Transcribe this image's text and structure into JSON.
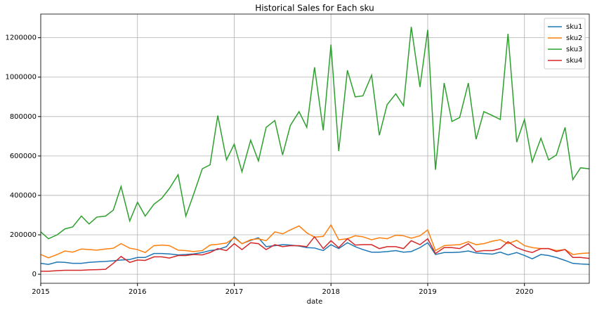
{
  "chart_data": {
    "type": "line",
    "title": "Historical Sales for Each sku",
    "xlabel": "date",
    "x": [
      2015,
      2015.08,
      2015.17,
      2015.25,
      2015.33,
      2015.42,
      2015.5,
      2015.58,
      2015.67,
      2015.75,
      2015.83,
      2015.92,
      2016,
      2016.08,
      2016.17,
      2016.25,
      2016.33,
      2016.42,
      2016.5,
      2016.58,
      2016.67,
      2016.75,
      2016.83,
      2016.92,
      2017,
      2017.08,
      2017.17,
      2017.25,
      2017.33,
      2017.42,
      2017.5,
      2017.58,
      2017.67,
      2017.75,
      2017.83,
      2017.92,
      2018,
      2018.08,
      2018.17,
      2018.25,
      2018.33,
      2018.42,
      2018.5,
      2018.58,
      2018.67,
      2018.75,
      2018.83,
      2018.92,
      2019,
      2019.08,
      2019.17,
      2019.25,
      2019.33,
      2019.42,
      2019.5,
      2019.58,
      2019.67,
      2019.75,
      2019.83,
      2019.92,
      2020,
      2020.08,
      2020.17,
      2020.25,
      2020.33,
      2020.42,
      2020.5,
      2020.58,
      2020.67
    ],
    "series": [
      {
        "name": "sku1",
        "color": "#1f77b4",
        "values": [
          55000,
          50000,
          62000,
          60000,
          55000,
          55000,
          60000,
          63000,
          65000,
          68000,
          72000,
          75000,
          85000,
          85000,
          105000,
          105000,
          103000,
          98000,
          100000,
          103000,
          110000,
          120000,
          125000,
          140000,
          190000,
          155000,
          172000,
          185000,
          140000,
          145000,
          150000,
          148000,
          143000,
          135000,
          133000,
          120000,
          150000,
          130000,
          160000,
          140000,
          125000,
          112000,
          112000,
          115000,
          120000,
          112000,
          115000,
          135000,
          160000,
          100000,
          110000,
          110000,
          112000,
          118000,
          108000,
          105000,
          102000,
          112000,
          98000,
          110000,
          95000,
          78000,
          100000,
          95000,
          85000,
          70000,
          55000,
          52000,
          50000
        ]
      },
      {
        "name": "sku2",
        "color": "#ff7f0e",
        "values": [
          100000,
          83000,
          100000,
          118000,
          112000,
          128000,
          125000,
          122000,
          128000,
          132000,
          155000,
          132000,
          125000,
          110000,
          145000,
          148000,
          145000,
          122000,
          120000,
          115000,
          120000,
          148000,
          152000,
          158000,
          185000,
          155000,
          175000,
          180000,
          170000,
          215000,
          205000,
          225000,
          245000,
          210000,
          188000,
          192000,
          250000,
          175000,
          180000,
          195000,
          190000,
          175000,
          185000,
          180000,
          198000,
          195000,
          183000,
          195000,
          225000,
          120000,
          145000,
          148000,
          150000,
          165000,
          150000,
          155000,
          168000,
          175000,
          155000,
          172000,
          145000,
          135000,
          130000,
          130000,
          120000,
          125000,
          100000,
          105000,
          108000
        ]
      },
      {
        "name": "sku3",
        "color": "#2ca02c",
        "values": [
          215000,
          180000,
          200000,
          230000,
          240000,
          295000,
          255000,
          290000,
          295000,
          325000,
          445000,
          270000,
          365000,
          295000,
          355000,
          385000,
          435000,
          505000,
          295000,
          405000,
          535000,
          555000,
          805000,
          580000,
          660000,
          520000,
          680000,
          575000,
          745000,
          780000,
          605000,
          755000,
          825000,
          745000,
          1050000,
          730000,
          1165000,
          625000,
          1035000,
          900000,
          905000,
          1010000,
          705000,
          860000,
          915000,
          855000,
          1255000,
          950000,
          1240000,
          530000,
          970000,
          775000,
          795000,
          970000,
          685000,
          825000,
          805000,
          785000,
          1220000,
          670000,
          785000,
          570000,
          690000,
          580000,
          605000,
          745000,
          480000,
          540000,
          535000
        ]
      },
      {
        "name": "sku4",
        "color": "#d62728",
        "values": [
          15000,
          15000,
          18000,
          20000,
          20000,
          20000,
          22000,
          23000,
          25000,
          55000,
          90000,
          60000,
          72000,
          70000,
          88000,
          88000,
          82000,
          95000,
          95000,
          100000,
          98000,
          110000,
          130000,
          120000,
          155000,
          125000,
          160000,
          155000,
          125000,
          150000,
          140000,
          145000,
          145000,
          140000,
          190000,
          130000,
          170000,
          135000,
          180000,
          148000,
          150000,
          150000,
          130000,
          140000,
          140000,
          130000,
          170000,
          150000,
          180000,
          105000,
          135000,
          135000,
          130000,
          155000,
          115000,
          120000,
          120000,
          130000,
          165000,
          135000,
          120000,
          110000,
          130000,
          130000,
          115000,
          125000,
          85000,
          85000,
          80000
        ]
      }
    ],
    "xlim": [
      2015,
      2020.67
    ],
    "xticks": [
      2015,
      2016,
      2017,
      2018,
      2019,
      2020
    ],
    "ylim": [
      -46000,
      1320000
    ],
    "yticks": [
      0,
      200000,
      400000,
      600000,
      800000,
      1000000,
      1200000
    ],
    "grid": true,
    "legend": "upper right"
  }
}
